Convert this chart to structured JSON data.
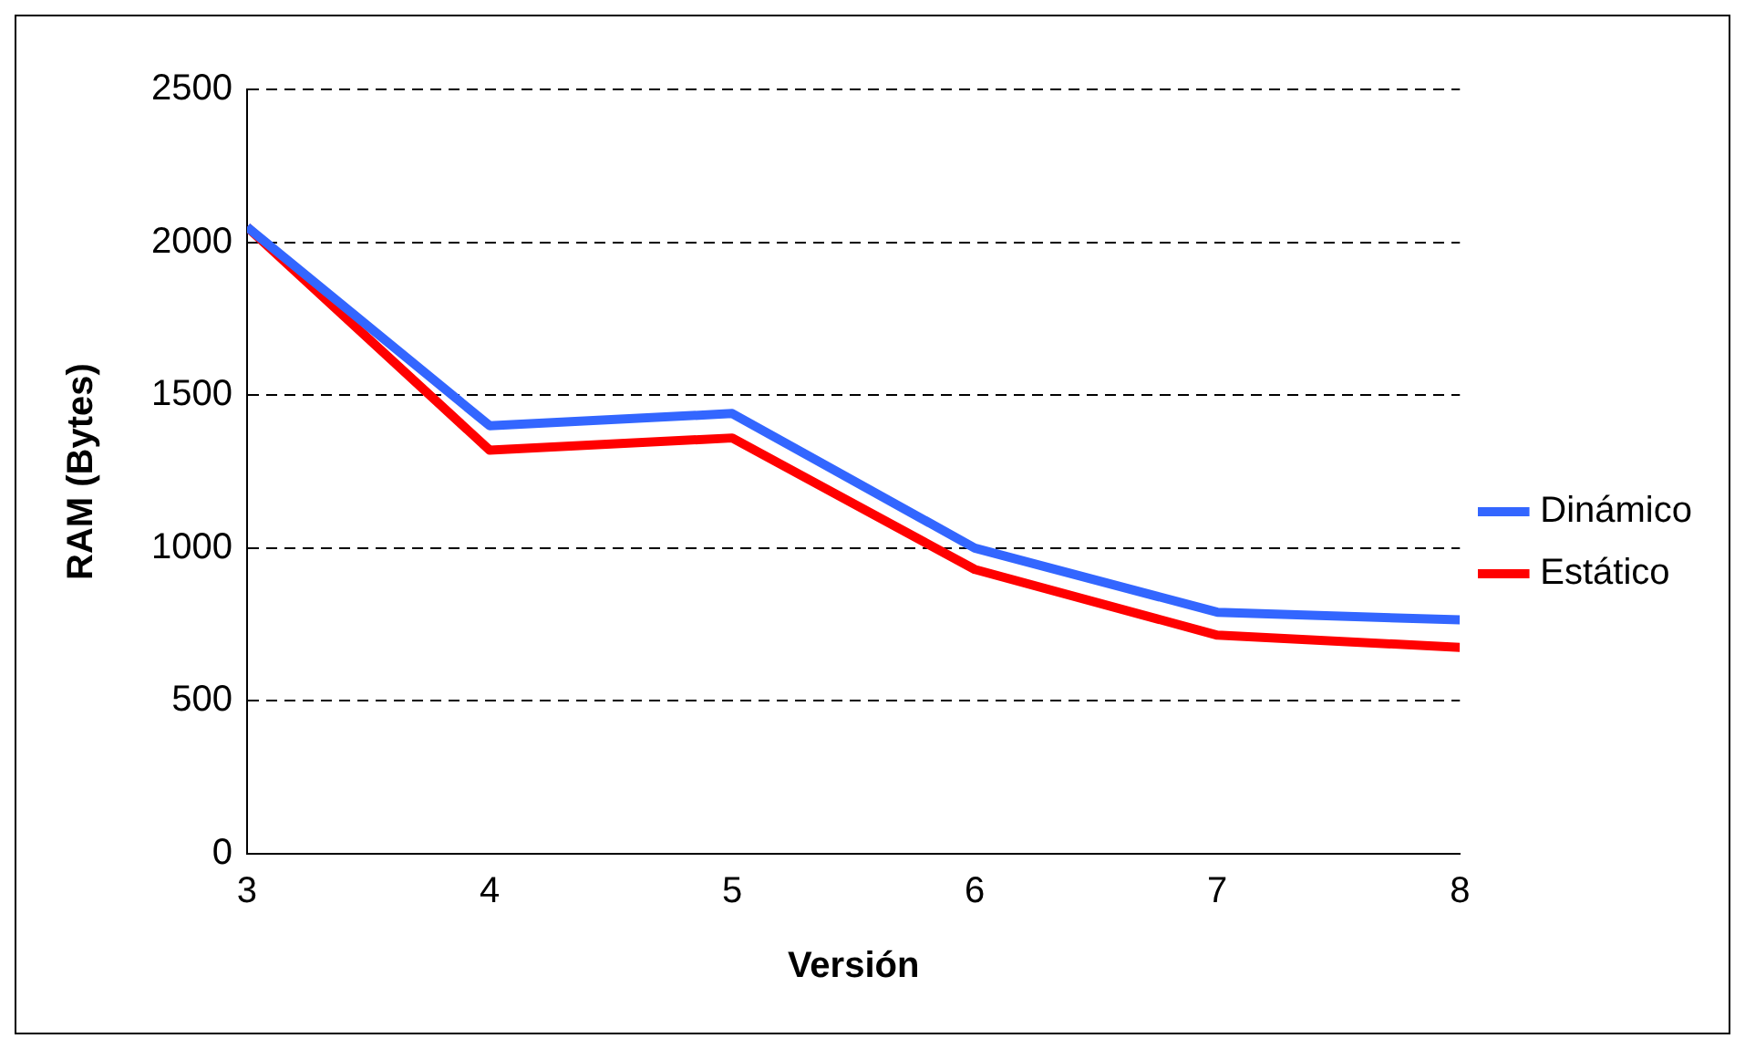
{
  "chart_data": {
    "type": "line",
    "xlabel": "Versión",
    "ylabel": "RAM (Bytes)",
    "x": [
      3,
      4,
      5,
      6,
      7,
      8
    ],
    "series": [
      {
        "name": "Dinámico",
        "color": "#3366ff",
        "values": [
          2050,
          1400,
          1440,
          1000,
          790,
          765
        ]
      },
      {
        "name": "Estático",
        "color": "#ff0000",
        "values": [
          2050,
          1320,
          1360,
          930,
          715,
          675
        ]
      }
    ],
    "xlim": [
      3,
      8
    ],
    "xticks": [
      3,
      4,
      5,
      6,
      7,
      8
    ],
    "ylim": [
      0,
      2500
    ],
    "yticks": [
      0,
      500,
      1000,
      1500,
      2000,
      2500
    ],
    "grid": "y",
    "legend": "right",
    "marker": "none",
    "line_style": "solid"
  }
}
